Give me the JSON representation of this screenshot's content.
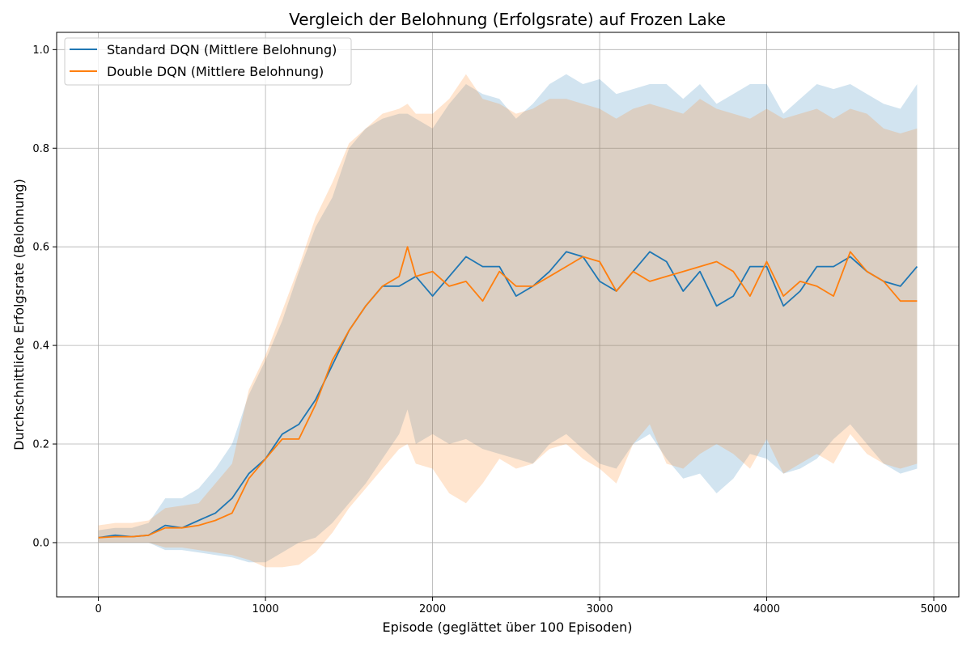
{
  "chart_data": {
    "type": "line",
    "title": "Vergleich der Belohnung (Erfolgsrate) auf Frozen Lake",
    "xlabel": "Episode (geglättet über 100 Episoden)",
    "ylabel": "Durchschnittliche Erfolgsrate (Belohnung)",
    "xlim": [
      -250,
      5150
    ],
    "ylim": [
      -0.11,
      1.035
    ],
    "xticks": [
      0,
      1000,
      2000,
      3000,
      4000,
      5000
    ],
    "yticks": [
      0.0,
      0.2,
      0.4,
      0.6,
      0.8,
      1.0
    ],
    "xtick_labels": [
      "0",
      "1000",
      "2000",
      "3000",
      "4000",
      "5000"
    ],
    "ytick_labels": [
      "0.0",
      "0.2",
      "0.4",
      "0.6",
      "0.8",
      "1.0"
    ],
    "grid": true,
    "legend_position": "upper-left",
    "x": [
      0,
      100,
      200,
      300,
      400,
      500,
      600,
      700,
      800,
      900,
      1000,
      1100,
      1200,
      1300,
      1400,
      1500,
      1600,
      1700,
      1800,
      1850,
      1900,
      2000,
      2100,
      2200,
      2300,
      2400,
      2500,
      2600,
      2700,
      2800,
      2900,
      3000,
      3100,
      3200,
      3300,
      3400,
      3500,
      3600,
      3700,
      3800,
      3900,
      4000,
      4100,
      4200,
      4300,
      4400,
      4500,
      4600,
      4700,
      4800,
      4900
    ],
    "series": [
      {
        "name": "Standard DQN (Mittlere Belohnung)",
        "color": "#1f77b4",
        "mean": [
          0.01,
          0.015,
          0.012,
          0.015,
          0.035,
          0.03,
          0.045,
          0.06,
          0.09,
          0.14,
          0.17,
          0.22,
          0.24,
          0.29,
          0.36,
          0.43,
          0.48,
          0.52,
          0.52,
          0.53,
          0.54,
          0.5,
          0.54,
          0.58,
          0.56,
          0.56,
          0.5,
          0.52,
          0.55,
          0.59,
          0.58,
          0.53,
          0.51,
          0.55,
          0.59,
          0.57,
          0.51,
          0.55,
          0.48,
          0.5,
          0.56,
          0.56,
          0.48,
          0.51,
          0.56,
          0.56,
          0.58,
          0.55,
          0.53,
          0.52,
          0.56
        ],
        "lower": [
          0.0,
          0.0,
          0.0,
          0.0,
          -0.015,
          -0.015,
          -0.02,
          -0.025,
          -0.03,
          -0.04,
          -0.04,
          -0.02,
          0.0,
          0.01,
          0.04,
          0.08,
          0.12,
          0.17,
          0.22,
          0.27,
          0.2,
          0.22,
          0.2,
          0.21,
          0.19,
          0.18,
          0.17,
          0.16,
          0.2,
          0.22,
          0.19,
          0.16,
          0.15,
          0.2,
          0.22,
          0.17,
          0.13,
          0.14,
          0.1,
          0.13,
          0.18,
          0.17,
          0.14,
          0.15,
          0.17,
          0.21,
          0.24,
          0.2,
          0.16,
          0.14,
          0.15
        ],
        "upper": [
          0.025,
          0.03,
          0.03,
          0.04,
          0.09,
          0.09,
          0.11,
          0.15,
          0.2,
          0.3,
          0.37,
          0.45,
          0.55,
          0.64,
          0.7,
          0.8,
          0.84,
          0.86,
          0.87,
          0.87,
          0.86,
          0.84,
          0.89,
          0.93,
          0.91,
          0.9,
          0.86,
          0.89,
          0.93,
          0.95,
          0.93,
          0.94,
          0.91,
          0.92,
          0.93,
          0.93,
          0.9,
          0.93,
          0.89,
          0.91,
          0.93,
          0.93,
          0.87,
          0.9,
          0.93,
          0.92,
          0.93,
          0.91,
          0.89,
          0.88,
          0.93
        ]
      },
      {
        "name": "Double DQN (Mittlere Belohnung)",
        "color": "#ff7f0e",
        "mean": [
          0.01,
          0.012,
          0.012,
          0.015,
          0.03,
          0.03,
          0.035,
          0.045,
          0.06,
          0.13,
          0.17,
          0.21,
          0.21,
          0.28,
          0.37,
          0.43,
          0.48,
          0.52,
          0.54,
          0.6,
          0.54,
          0.55,
          0.52,
          0.53,
          0.49,
          0.55,
          0.52,
          0.52,
          0.54,
          0.56,
          0.58,
          0.57,
          0.51,
          0.55,
          0.53,
          0.54,
          0.55,
          0.56,
          0.57,
          0.55,
          0.5,
          0.57,
          0.5,
          0.53,
          0.52,
          0.5,
          0.59,
          0.55,
          0.53,
          0.49,
          0.49
        ],
        "lower": [
          0.0,
          0.0,
          0.0,
          0.0,
          -0.01,
          -0.01,
          -0.015,
          -0.02,
          -0.025,
          -0.035,
          -0.05,
          -0.05,
          -0.045,
          -0.02,
          0.02,
          0.07,
          0.11,
          0.15,
          0.19,
          0.2,
          0.16,
          0.15,
          0.1,
          0.08,
          0.12,
          0.17,
          0.15,
          0.16,
          0.19,
          0.2,
          0.17,
          0.15,
          0.12,
          0.2,
          0.24,
          0.16,
          0.15,
          0.18,
          0.2,
          0.18,
          0.15,
          0.21,
          0.14,
          0.16,
          0.18,
          0.16,
          0.22,
          0.18,
          0.16,
          0.15,
          0.16
        ],
        "upper": [
          0.035,
          0.04,
          0.04,
          0.045,
          0.07,
          0.075,
          0.08,
          0.12,
          0.16,
          0.31,
          0.38,
          0.47,
          0.56,
          0.66,
          0.73,
          0.81,
          0.84,
          0.87,
          0.88,
          0.89,
          0.87,
          0.87,
          0.9,
          0.95,
          0.9,
          0.89,
          0.87,
          0.88,
          0.9,
          0.9,
          0.89,
          0.88,
          0.86,
          0.88,
          0.89,
          0.88,
          0.87,
          0.9,
          0.88,
          0.87,
          0.86,
          0.88,
          0.86,
          0.87,
          0.88,
          0.86,
          0.88,
          0.87,
          0.84,
          0.83,
          0.84
        ]
      }
    ]
  }
}
